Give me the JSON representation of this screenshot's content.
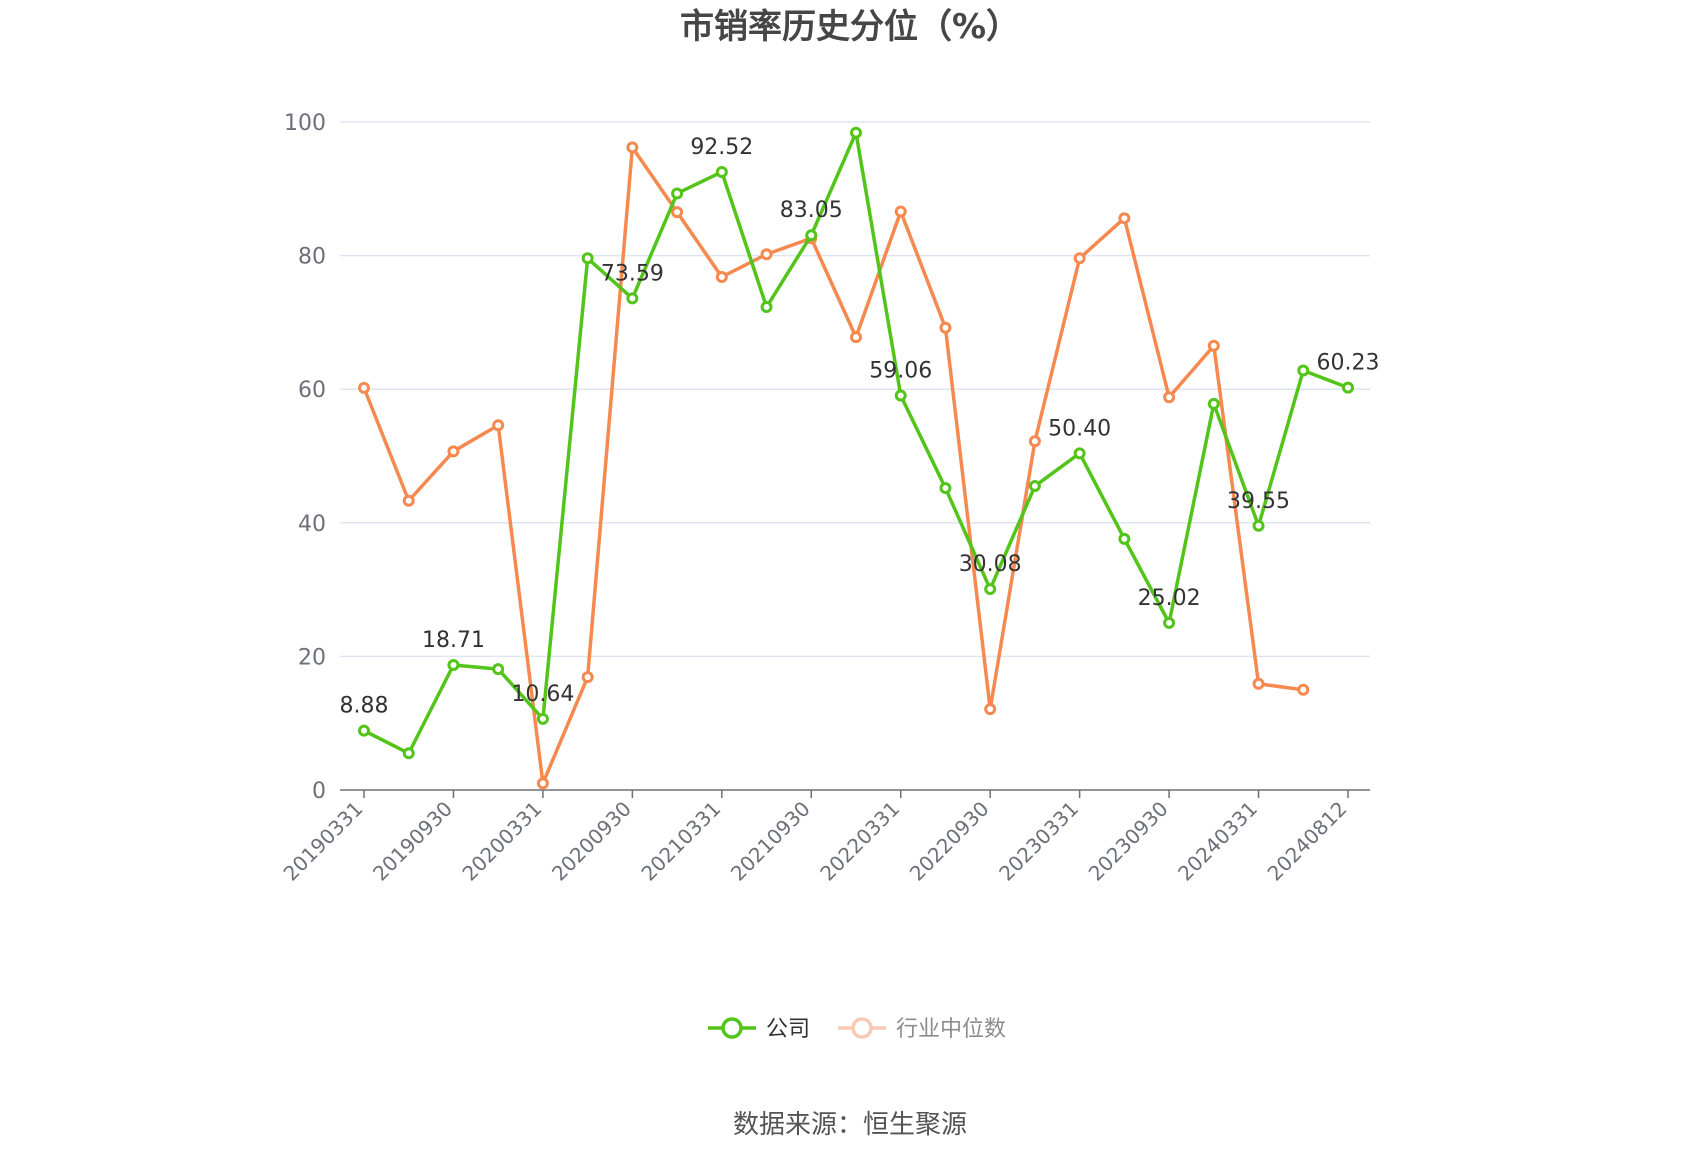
{
  "chart_data": {
    "type": "line",
    "title": "市销率历史分位（%）",
    "source_text": "数据来源：恒生聚源",
    "x": [
      "20190331",
      "20190630",
      "20190930",
      "20191231",
      "20200331",
      "20200630",
      "20200930",
      "20201231",
      "20210331",
      "20210630",
      "20210930",
      "20211231",
      "20220331",
      "20220630",
      "20220930",
      "20221231",
      "20230331",
      "20230630",
      "20230930",
      "20231231",
      "20240331",
      "20240630",
      "20240812"
    ],
    "x_tick_labels": [
      "20190331",
      "20190930",
      "20200331",
      "20200930",
      "20210331",
      "20210930",
      "20220331",
      "20220930",
      "20230331",
      "20230930",
      "20240331",
      "20240812"
    ],
    "ylim": [
      0,
      100
    ],
    "y_ticks": [
      0,
      20,
      40,
      60,
      80,
      100
    ],
    "grid": true,
    "legend_position": "bottom",
    "series": [
      {
        "name": "公司",
        "color": "#52c41a",
        "values": [
          8.88,
          5.5,
          18.71,
          18.1,
          10.64,
          79.6,
          73.59,
          89.3,
          92.52,
          72.3,
          83.05,
          98.4,
          59.06,
          45.2,
          30.08,
          45.5,
          50.4,
          37.6,
          25.02,
          57.8,
          39.55,
          62.8,
          60.23
        ],
        "labels": [
          "8.88",
          "",
          "18.71",
          "",
          "10.64",
          "",
          "73.59",
          "",
          "92.52",
          "",
          "83.05",
          "",
          "59.06",
          "",
          "30.08",
          "",
          "50.40",
          "",
          "25.02",
          "",
          "39.55",
          "",
          "60.23"
        ]
      },
      {
        "name": "行业中位数",
        "color": "#f5894f",
        "values": [
          60.2,
          43.3,
          50.7,
          54.6,
          1.0,
          16.9,
          96.2,
          86.5,
          76.8,
          80.2,
          82.6,
          67.8,
          86.6,
          69.2,
          12.1,
          52.2,
          79.6,
          85.6,
          58.8,
          66.5,
          15.9,
          15.0,
          null
        ]
      }
    ]
  }
}
